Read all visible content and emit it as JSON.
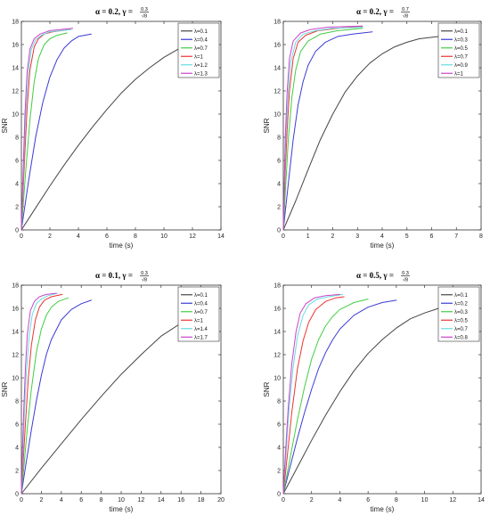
{
  "chart_data": [
    {
      "type": "line",
      "title_main": "α = 0.2, γ =",
      "title_frac_num": "0.3",
      "title_frac_den": "√8",
      "xlabel": "time (s)",
      "ylabel": "SNR",
      "xlim": [
        0,
        14
      ],
      "ylim": [
        0,
        18
      ],
      "xticks": [
        "0",
        "2",
        "4",
        "6",
        "8",
        "10",
        "12",
        "14"
      ],
      "yticks": [
        "0",
        "2",
        "4",
        "6",
        "8",
        "10",
        "12",
        "14",
        "16",
        "18"
      ],
      "legend_position": "top-right",
      "series": [
        {
          "name": "λ=0.1",
          "color": "#444444",
          "x": [
            0,
            1,
            2,
            3,
            4,
            5,
            6,
            7,
            8,
            9,
            10,
            11,
            12.3
          ],
          "y": [
            0,
            1.9,
            3.8,
            5.6,
            7.3,
            8.9,
            10.4,
            11.8,
            13.0,
            14.0,
            14.9,
            15.6,
            16.0
          ]
        },
        {
          "name": "λ=0.4",
          "color": "#3b3bd6",
          "x": [
            0,
            0.5,
            1,
            1.5,
            2,
            2.5,
            3,
            3.5,
            4,
            4.9
          ],
          "y": [
            0,
            4.2,
            8.0,
            11.0,
            13.2,
            14.7,
            15.7,
            16.3,
            16.7,
            16.9
          ]
        },
        {
          "name": "λ=0.7",
          "color": "#44cc44",
          "x": [
            0,
            0.3,
            0.6,
            0.9,
            1.2,
            1.6,
            2,
            2.5,
            3.2
          ],
          "y": [
            0,
            5.0,
            9.5,
            12.8,
            14.8,
            16.0,
            16.5,
            16.8,
            17.0
          ]
        },
        {
          "name": "λ=1",
          "color": "#ee3333",
          "x": [
            0,
            0.2,
            0.4,
            0.6,
            0.9,
            1.2,
            1.6,
            2.2,
            3.4
          ],
          "y": [
            0,
            5.5,
            10.5,
            13.8,
            15.8,
            16.5,
            16.9,
            17.1,
            17.3
          ]
        },
        {
          "name": "λ=1.2",
          "color": "#66dddd",
          "x": [
            0,
            0.15,
            0.3,
            0.5,
            0.7,
            1,
            1.4,
            2,
            3.5
          ],
          "y": [
            0,
            5.2,
            10.0,
            13.8,
            15.6,
            16.4,
            16.8,
            17.1,
            17.3
          ]
        },
        {
          "name": "λ=1.3",
          "color": "#cc44cc",
          "x": [
            0,
            0.12,
            0.25,
            0.4,
            0.6,
            0.9,
            1.3,
            2,
            3.6
          ],
          "y": [
            0,
            5.0,
            10.0,
            13.6,
            15.6,
            16.5,
            16.9,
            17.2,
            17.4
          ]
        }
      ]
    },
    {
      "type": "line",
      "title_main": "α = 0.2, γ =",
      "title_frac_num": "0.7",
      "title_frac_den": "√8",
      "xlabel": "time (s)",
      "ylabel": "SNR",
      "xlim": [
        0,
        8
      ],
      "ylim": [
        0,
        18
      ],
      "xticks": [
        "0",
        "1",
        "2",
        "3",
        "4",
        "5",
        "6",
        "7",
        "8"
      ],
      "yticks": [
        "0",
        "2",
        "4",
        "6",
        "8",
        "10",
        "12",
        "14",
        "16",
        "18"
      ],
      "legend_position": "top-right",
      "series": [
        {
          "name": "λ=0.1",
          "color": "#444444",
          "x": [
            0,
            0.5,
            1,
            1.5,
            2,
            2.5,
            3,
            3.5,
            4,
            4.5,
            5,
            5.5,
            6.3
          ],
          "y": [
            0,
            2.5,
            5.2,
            7.8,
            10.0,
            11.9,
            13.3,
            14.4,
            15.2,
            15.8,
            16.2,
            16.5,
            16.7
          ]
        },
        {
          "name": "λ=0.3",
          "color": "#3b3bd6",
          "x": [
            0,
            0.2,
            0.4,
            0.6,
            0.8,
            1,
            1.3,
            1.7,
            2.2,
            2.8,
            3.6
          ],
          "y": [
            0,
            4.0,
            7.8,
            10.8,
            12.8,
            14.2,
            15.4,
            16.2,
            16.7,
            16.9,
            17.1
          ]
        },
        {
          "name": "λ=0.5",
          "color": "#44cc44",
          "x": [
            0,
            0.1,
            0.2,
            0.35,
            0.5,
            0.7,
            1,
            1.5,
            2.2,
            3.2
          ],
          "y": [
            0,
            4.0,
            7.8,
            11.5,
            13.8,
            15.4,
            16.3,
            16.9,
            17.2,
            17.4
          ]
        },
        {
          "name": "λ=0.7",
          "color": "#ee3333",
          "x": [
            0,
            0.07,
            0.15,
            0.25,
            0.4,
            0.6,
            0.9,
            1.4,
            2.2,
            3.2
          ],
          "y": [
            0,
            4.5,
            8.5,
            12.0,
            14.8,
            16.2,
            16.8,
            17.2,
            17.4,
            17.6
          ]
        },
        {
          "name": "λ=0.9",
          "color": "#66dddd",
          "x": [
            0,
            0.05,
            0.1,
            0.2,
            0.3,
            0.5,
            0.8,
            1.3,
            2,
            3.2
          ],
          "y": [
            0,
            4.2,
            8.0,
            12.0,
            14.5,
            16.2,
            16.9,
            17.2,
            17.4,
            17.5
          ]
        },
        {
          "name": "λ=1",
          "color": "#cc44cc",
          "x": [
            0,
            0.04,
            0.08,
            0.15,
            0.25,
            0.4,
            0.7,
            1.1,
            1.8,
            3.2
          ],
          "y": [
            0,
            4.0,
            8.0,
            11.8,
            14.8,
            16.3,
            17.0,
            17.3,
            17.5,
            17.6
          ]
        }
      ]
    },
    {
      "type": "line",
      "title_main": "α = 0.1, γ =",
      "title_frac_num": "0.3",
      "title_frac_den": "√8",
      "xlabel": "time (s)",
      "ylabel": "SNR",
      "xlim": [
        0,
        20
      ],
      "ylim": [
        0,
        18
      ],
      "xticks": [
        "0",
        "2",
        "4",
        "6",
        "8",
        "10",
        "12",
        "14",
        "16",
        "18",
        "20"
      ],
      "yticks": [
        "0",
        "2",
        "4",
        "6",
        "8",
        "10",
        "12",
        "14",
        "16",
        "18"
      ],
      "legend_position": "top-right",
      "series": [
        {
          "name": "λ=0.1",
          "color": "#444444",
          "x": [
            0,
            2,
            4,
            6,
            8,
            10,
            12,
            14,
            16.5
          ],
          "y": [
            0,
            2.2,
            4.3,
            6.4,
            8.4,
            10.3,
            12.0,
            13.6,
            15.0
          ]
        },
        {
          "name": "λ=0.4",
          "color": "#3b3bd6",
          "x": [
            0,
            0.5,
            1,
            1.5,
            2,
            2.5,
            3,
            4,
            5,
            6,
            7
          ],
          "y": [
            0,
            2.8,
            5.5,
            8.0,
            10.2,
            12.0,
            13.3,
            15.0,
            15.9,
            16.4,
            16.7
          ]
        },
        {
          "name": "λ=0.7",
          "color": "#44cc44",
          "x": [
            0,
            0.3,
            0.6,
            1,
            1.5,
            2,
            2.5,
            3,
            3.7,
            4.7
          ],
          "y": [
            0,
            2.8,
            5.7,
            9.0,
            12.2,
            14.2,
            15.4,
            16.1,
            16.6,
            16.9
          ]
        },
        {
          "name": "λ=1",
          "color": "#ee3333",
          "x": [
            0,
            0.2,
            0.4,
            0.7,
            1,
            1.4,
            1.8,
            2.3,
            3,
            4.1
          ],
          "y": [
            0,
            3.0,
            6.0,
            10.0,
            12.8,
            15.0,
            16.1,
            16.7,
            17.0,
            17.2
          ]
        },
        {
          "name": "λ=1.4",
          "color": "#66dddd",
          "x": [
            0,
            0.15,
            0.3,
            0.5,
            0.8,
            1.1,
            1.5,
            2,
            2.7,
            3.6
          ],
          "y": [
            0,
            3.5,
            7.0,
            10.5,
            13.8,
            15.5,
            16.4,
            16.8,
            17.1,
            17.3
          ]
        },
        {
          "name": "λ=1.7",
          "color": "#cc44cc",
          "x": [
            0,
            0.1,
            0.25,
            0.4,
            0.6,
            0.9,
            1.3,
            1.8,
            2.5,
            3.5
          ],
          "y": [
            0,
            3.5,
            7.5,
            10.8,
            13.8,
            15.8,
            16.6,
            17.0,
            17.2,
            17.3
          ]
        }
      ]
    },
    {
      "type": "line",
      "title_main": "α = 0.5, γ =",
      "title_frac_num": "0.3",
      "title_frac_den": "√8",
      "xlabel": "time (s)",
      "ylabel": "SNR",
      "xlim": [
        0,
        14
      ],
      "ylim": [
        0,
        18
      ],
      "xticks": [
        "0",
        "2",
        "4",
        "6",
        "8",
        "10",
        "12",
        "14"
      ],
      "yticks": [
        "0",
        "2",
        "4",
        "6",
        "8",
        "10",
        "12",
        "14",
        "16",
        "18"
      ],
      "legend_position": "top-right",
      "series": [
        {
          "name": "λ=0.1",
          "color": "#444444",
          "x": [
            0,
            1,
            2,
            3,
            4,
            5,
            6,
            7,
            8,
            9,
            10,
            11
          ],
          "y": [
            0,
            2.3,
            4.6,
            6.8,
            8.8,
            10.6,
            12.1,
            13.3,
            14.3,
            15.1,
            15.6,
            16.0
          ]
        },
        {
          "name": "λ=0.2",
          "color": "#3b3bd6",
          "x": [
            0,
            0.5,
            1,
            1.5,
            2,
            2.5,
            3,
            3.5,
            4,
            5,
            6,
            7,
            8
          ],
          "y": [
            0,
            2.4,
            4.8,
            7.0,
            9.0,
            10.8,
            12.2,
            13.3,
            14.2,
            15.4,
            16.1,
            16.5,
            16.7
          ]
        },
        {
          "name": "λ=0.3",
          "color": "#44cc44",
          "x": [
            0,
            0.5,
            1,
            1.5,
            2,
            2.5,
            3,
            3.5,
            4,
            5,
            6
          ],
          "y": [
            0,
            3.2,
            6.4,
            9.2,
            11.6,
            13.3,
            14.5,
            15.3,
            15.9,
            16.5,
            16.8
          ]
        },
        {
          "name": "λ=0.5",
          "color": "#ee3333",
          "x": [
            0,
            0.3,
            0.6,
            1,
            1.4,
            1.8,
            2.3,
            3,
            3.7,
            4.3
          ],
          "y": [
            0,
            3.5,
            7.0,
            10.8,
            13.2,
            14.8,
            15.9,
            16.6,
            16.9,
            17.0
          ]
        },
        {
          "name": "λ=0.7",
          "color": "#66dddd",
          "x": [
            0,
            0.2,
            0.4,
            0.7,
            1,
            1.4,
            1.8,
            2.4,
            3.2,
            4.2
          ],
          "y": [
            0,
            3.6,
            7.2,
            11.0,
            13.6,
            15.4,
            16.3,
            16.8,
            17.0,
            17.2
          ]
        },
        {
          "name": "λ=0.8",
          "color": "#cc44cc",
          "x": [
            0,
            0.15,
            0.35,
            0.6,
            0.9,
            1.2,
            1.6,
            2.2,
            3,
            4
          ],
          "y": [
            0,
            3.5,
            7.5,
            11.2,
            14.0,
            15.6,
            16.4,
            16.9,
            17.1,
            17.2
          ]
        }
      ]
    }
  ]
}
